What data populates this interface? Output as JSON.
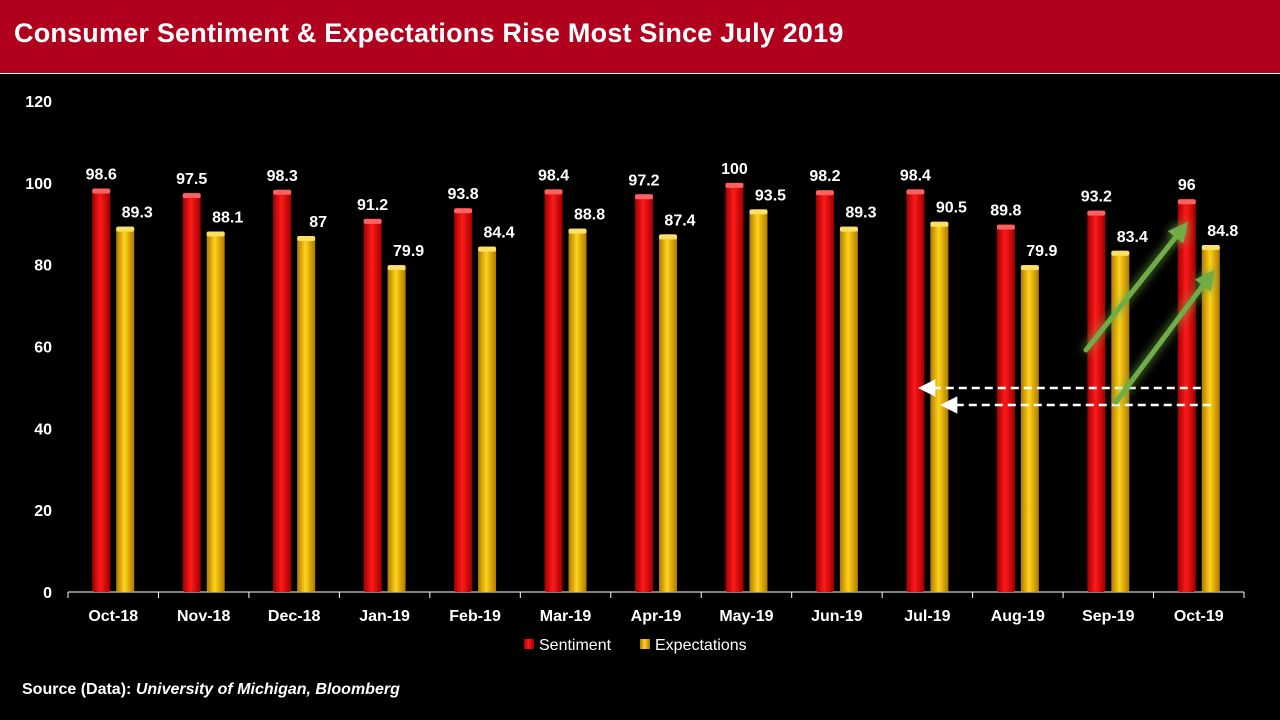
{
  "title": "Consumer Sentiment & Expectations Rise Most Since July 2019",
  "source_label": "Source (Data):",
  "source_value": "University of Michigan, Bloomberg",
  "colors": {
    "title_bg": "#b0001e",
    "sentiment": "#ff0000",
    "expectations": "#ffc000",
    "arrow_green": "#70ad47"
  },
  "chart_data": {
    "type": "bar",
    "title": "Consumer Sentiment & Expectations Rise Most Since July 2019",
    "categories": [
      "Oct-18",
      "Nov-18",
      "Dec-18",
      "Jan-19",
      "Feb-19",
      "Mar-19",
      "Apr-19",
      "May-19",
      "Jun-19",
      "Jul-19",
      "Aug-19",
      "Sep-19",
      "Oct-19"
    ],
    "series": [
      {
        "name": "Sentiment",
        "color": "#ff0000",
        "values": [
          98.6,
          97.5,
          98.3,
          91.2,
          93.8,
          98.4,
          97.2,
          100,
          98.2,
          98.4,
          89.8,
          93.2,
          96
        ]
      },
      {
        "name": "Expectations",
        "color": "#ffc000",
        "values": [
          89.3,
          88.1,
          87,
          79.9,
          84.4,
          88.8,
          87.4,
          93.5,
          89.3,
          90.5,
          79.9,
          83.4,
          84.8
        ]
      }
    ],
    "ylim": [
      0,
      120
    ],
    "yticks": [
      0,
      20,
      40,
      60,
      80,
      100,
      120
    ],
    "legend": "bottom",
    "grid": false,
    "annotations": [
      {
        "kind": "dashed-arrow",
        "from_category": "Oct-19",
        "to_category": "Jul-19",
        "series": "Sentiment"
      },
      {
        "kind": "dashed-arrow",
        "from_category": "Oct-19",
        "to_category": "Jul-19",
        "series": "Expectations"
      },
      {
        "kind": "trend-arrow",
        "series": "Sentiment",
        "from_category": "Sep-19",
        "to_category": "Oct-19"
      },
      {
        "kind": "trend-arrow",
        "series": "Expectations",
        "from_category": "Sep-19",
        "to_category": "Oct-19"
      }
    ]
  }
}
